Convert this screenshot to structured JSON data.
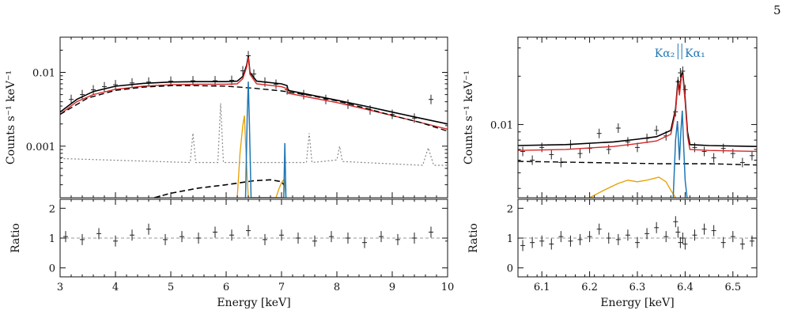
{
  "page_number": "5",
  "colors": {
    "data": "#222222",
    "total_model": "#000000",
    "red_model": "#d62728",
    "continuum": "#000000",
    "background": "#888888",
    "line_blue": "#1f77b4",
    "line_orange": "#e69f00",
    "ratio_ref": "#999999"
  },
  "chart_data": [
    {
      "type": "line",
      "panel": "left-spectrum",
      "xlabel": "",
      "ylabel": "Counts s⁻¹ keV⁻¹",
      "xlim": [
        3,
        10
      ],
      "ylim": [
        0.0002,
        0.03
      ],
      "yscale": "log",
      "x_ticks": [
        3,
        4,
        5,
        6,
        7,
        8,
        9,
        10
      ],
      "y_ticks": [
        0.001,
        0.01
      ],
      "y_tick_labels": [
        "0.001",
        "0.01"
      ],
      "series": [
        {
          "style": "data",
          "x": [
            3.0,
            3.2,
            3.4,
            3.6,
            3.8,
            4.0,
            4.3,
            4.6,
            5.0,
            5.4,
            5.8,
            6.1,
            6.3,
            6.4,
            6.5,
            6.7,
            6.9,
            7.1,
            7.4,
            7.8,
            8.2,
            8.6,
            9.0,
            9.4,
            9.7,
            10.0
          ],
          "y": [
            0.0035,
            0.0043,
            0.005,
            0.0058,
            0.0064,
            0.0068,
            0.0072,
            0.0074,
            0.0076,
            0.0077,
            0.0077,
            0.0078,
            0.0105,
            0.0168,
            0.0095,
            0.0074,
            0.0069,
            0.0058,
            0.005,
            0.0043,
            0.0037,
            0.0031,
            0.0027,
            0.0024,
            0.0043,
            0.0019
          ]
        },
        {
          "style": "total-model",
          "x": [
            3.0,
            3.3,
            3.6,
            4.0,
            4.5,
            5.0,
            5.5,
            6.0,
            6.2,
            6.3,
            6.37,
            6.4,
            6.43,
            6.55,
            7.0,
            7.1,
            7.12,
            7.5,
            8.0,
            8.5,
            9.0,
            9.5,
            10.0
          ],
          "y": [
            0.0029,
            0.0043,
            0.0055,
            0.0065,
            0.0071,
            0.0074,
            0.0075,
            0.0075,
            0.0076,
            0.0088,
            0.0125,
            0.0168,
            0.01,
            0.0076,
            0.007,
            0.0066,
            0.0057,
            0.005,
            0.0042,
            0.0035,
            0.0029,
            0.0024,
            0.002
          ]
        },
        {
          "style": "red-model",
          "x": [
            3.0,
            3.3,
            3.6,
            4.0,
            4.5,
            5.0,
            5.5,
            6.0,
            6.2,
            6.3,
            6.37,
            6.4,
            6.43,
            6.55,
            7.0,
            7.1,
            7.12,
            7.5,
            8.0,
            8.5,
            9.0,
            9.5,
            10.0
          ],
          "y": [
            0.0027,
            0.004,
            0.005,
            0.0059,
            0.0065,
            0.0068,
            0.0069,
            0.0069,
            0.007,
            0.0082,
            0.0118,
            0.016,
            0.0094,
            0.007,
            0.0064,
            0.006,
            0.0052,
            0.0046,
            0.0039,
            0.0032,
            0.0026,
            0.0021,
            0.0017
          ]
        },
        {
          "style": "continuum",
          "x": [
            3.0,
            3.5,
            4.0,
            4.5,
            5.0,
            5.5,
            6.0,
            6.5,
            7.0,
            7.5,
            8.0,
            8.5,
            9.0,
            9.5,
            10.0
          ],
          "y": [
            0.0027,
            0.0045,
            0.0057,
            0.0063,
            0.0066,
            0.0066,
            0.0065,
            0.0061,
            0.0056,
            0.0049,
            0.0041,
            0.0033,
            0.0026,
            0.0021,
            0.0016
          ]
        },
        {
          "style": "background",
          "x": [
            3.0,
            5.35,
            5.4,
            5.45,
            5.85,
            5.9,
            5.95,
            7.45,
            7.5,
            7.55,
            8.0,
            8.05,
            8.1,
            9.55,
            9.65,
            9.75,
            10.0
          ],
          "y": [
            0.00068,
            0.0006,
            0.0015,
            0.0006,
            0.0006,
            0.0038,
            0.0006,
            0.0006,
            0.0015,
            0.0006,
            0.00065,
            0.001,
            0.00062,
            0.00055,
            0.00095,
            0.00055,
            0.00055
          ]
        },
        {
          "style": "continuum-low",
          "x": [
            4.7,
            5.0,
            5.5,
            6.0,
            6.5,
            6.8,
            7.0,
            7.1
          ],
          "y": [
            0.0002,
            0.00023,
            0.00027,
            0.0003,
            0.00034,
            0.00035,
            0.00033,
            0.00026
          ]
        },
        {
          "style": "line-orange",
          "x": [
            6.2,
            6.25,
            6.3,
            6.33,
            6.35,
            6.4,
            6.9,
            6.95,
            7.0,
            7.05,
            7.08
          ],
          "y": [
            0.0002,
            0.0008,
            0.0019,
            0.0026,
            0.0011,
            0.0002,
            0.0002,
            0.00026,
            0.00032,
            0.00036,
            0.0002
          ]
        },
        {
          "style": "line-blue",
          "x": [
            6.35,
            6.38,
            6.4,
            6.42,
            6.45,
            7.04,
            7.06,
            7.08
          ],
          "y": [
            0.0002,
            0.0025,
            0.0075,
            0.002,
            0.0002,
            0.0002,
            0.0011,
            0.0002
          ]
        }
      ]
    },
    {
      "type": "scatter",
      "panel": "left-ratio",
      "xlabel": "Energy [keV]",
      "ylabel": "Ratio",
      "xlim": [
        3,
        10
      ],
      "ylim": [
        -0.3,
        2.3
      ],
      "x_ticks": [
        3,
        4,
        5,
        6,
        7,
        8,
        9,
        10
      ],
      "x_tick_labels": [
        "3",
        "4",
        "5",
        "6",
        "7",
        "8",
        "9",
        "10"
      ],
      "y_ticks": [
        0,
        1,
        2
      ],
      "y_tick_labels": [
        "0",
        "1",
        "2"
      ],
      "series": [
        {
          "x": [
            3.1,
            3.4,
            3.7,
            4.0,
            4.3,
            4.6,
            4.9,
            5.2,
            5.5,
            5.8,
            6.1,
            6.4,
            6.7,
            7.0,
            7.3,
            7.6,
            7.9,
            8.2,
            8.5,
            8.8,
            9.1,
            9.4,
            9.7,
            10.0
          ],
          "y": [
            1.05,
            0.95,
            1.15,
            0.9,
            1.1,
            1.3,
            0.95,
            1.05,
            1.0,
            1.2,
            1.1,
            1.25,
            0.95,
            1.1,
            1.0,
            0.9,
            1.05,
            1.0,
            0.85,
            1.05,
            0.95,
            1.0,
            1.2,
            0.9
          ]
        }
      ]
    },
    {
      "type": "line",
      "panel": "right-spectrum",
      "xlabel": "",
      "ylabel": "Counts s⁻¹ keV⁻¹",
      "xlim": [
        6.05,
        6.55
      ],
      "ylim": [
        0.0035,
        0.035
      ],
      "yscale": "log",
      "x_ticks": [
        6.1,
        6.2,
        6.3,
        6.4,
        6.5
      ],
      "y_ticks": [
        0.01
      ],
      "y_tick_labels": [
        "0.01"
      ],
      "annotations": [
        "Kα₂",
        "Kα₁"
      ],
      "series": [
        {
          "style": "data",
          "x": [
            6.06,
            6.08,
            6.1,
            6.12,
            6.14,
            6.16,
            6.18,
            6.2,
            6.22,
            6.24,
            6.26,
            6.28,
            6.3,
            6.32,
            6.34,
            6.36,
            6.38,
            6.385,
            6.39,
            6.395,
            6.4,
            6.42,
            6.44,
            6.46,
            6.48,
            6.5,
            6.52,
            6.54
          ],
          "y": [
            0.0068,
            0.006,
            0.0072,
            0.0065,
            0.0058,
            0.0075,
            0.0066,
            0.0071,
            0.0088,
            0.007,
            0.0095,
            0.0078,
            0.0072,
            0.0082,
            0.0092,
            0.0085,
            0.012,
            0.0185,
            0.021,
            0.0215,
            0.0165,
            0.0072,
            0.0068,
            0.0062,
            0.0071,
            0.0066,
            0.0058,
            0.0064
          ]
        },
        {
          "style": "total-model",
          "x": [
            6.05,
            6.15,
            6.25,
            6.3,
            6.34,
            6.37,
            6.38,
            6.385,
            6.388,
            6.392,
            6.395,
            6.4,
            6.405,
            6.41,
            6.45,
            6.55
          ],
          "y": [
            0.0074,
            0.0075,
            0.0078,
            0.0081,
            0.0084,
            0.0092,
            0.0125,
            0.019,
            0.016,
            0.0205,
            0.021,
            0.0145,
            0.009,
            0.0075,
            0.0074,
            0.0073
          ]
        },
        {
          "style": "red-model",
          "x": [
            6.05,
            6.15,
            6.25,
            6.3,
            6.34,
            6.37,
            6.38,
            6.385,
            6.388,
            6.392,
            6.395,
            6.4,
            6.405,
            6.41,
            6.45,
            6.55
          ],
          "y": [
            0.0069,
            0.007,
            0.0073,
            0.0076,
            0.0079,
            0.0087,
            0.012,
            0.0182,
            0.0152,
            0.0197,
            0.0202,
            0.0138,
            0.0085,
            0.007,
            0.0069,
            0.0068
          ]
        },
        {
          "style": "continuum",
          "x": [
            6.05,
            6.2,
            6.35,
            6.45,
            6.55
          ],
          "y": [
            0.0059,
            0.0058,
            0.0057,
            0.0057,
            0.0056
          ]
        },
        {
          "style": "line-orange",
          "x": [
            6.2,
            6.23,
            6.26,
            6.28,
            6.3,
            6.32,
            6.345,
            6.36,
            6.37,
            6.38
          ],
          "y": [
            0.0035,
            0.0039,
            0.0043,
            0.0045,
            0.0044,
            0.0045,
            0.0047,
            0.0044,
            0.0039,
            0.0035
          ]
        },
        {
          "style": "line-blue",
          "x": [
            6.375,
            6.38,
            6.384,
            6.388,
            6.391,
            6.394,
            6.397,
            6.4,
            6.404
          ],
          "y": [
            0.0035,
            0.008,
            0.0105,
            0.006,
            0.009,
            0.0122,
            0.0072,
            0.0045,
            0.0035
          ]
        }
      ]
    },
    {
      "type": "scatter",
      "panel": "right-ratio",
      "xlabel": "Energy [keV]",
      "ylabel": "Ratio",
      "xlim": [
        6.05,
        6.55
      ],
      "ylim": [
        -0.3,
        2.3
      ],
      "x_ticks": [
        6.1,
        6.2,
        6.3,
        6.4,
        6.5
      ],
      "x_tick_labels": [
        "6.1",
        "6.2",
        "6.3",
        "6.4",
        "6.5"
      ],
      "y_ticks": [
        0,
        1,
        2
      ],
      "y_tick_labels": [
        "0",
        "1",
        "2"
      ],
      "series": [
        {
          "x": [
            6.06,
            6.08,
            6.1,
            6.12,
            6.14,
            6.16,
            6.18,
            6.2,
            6.22,
            6.24,
            6.26,
            6.28,
            6.3,
            6.32,
            6.34,
            6.36,
            6.38,
            6.385,
            6.39,
            6.395,
            6.4,
            6.42,
            6.44,
            6.46,
            6.48,
            6.5,
            6.52,
            6.54
          ],
          "y": [
            0.75,
            0.85,
            0.9,
            0.8,
            1.05,
            0.9,
            0.95,
            1.05,
            1.3,
            1.0,
            0.95,
            1.1,
            0.85,
            1.15,
            1.35,
            1.05,
            1.55,
            1.2,
            0.85,
            1.0,
            0.8,
            1.1,
            1.3,
            1.25,
            0.85,
            1.05,
            0.8,
            0.9
          ]
        }
      ]
    }
  ]
}
